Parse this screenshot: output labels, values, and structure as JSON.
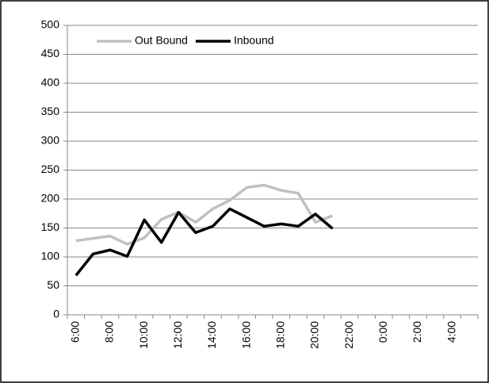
{
  "chart_data": {
    "type": "line",
    "categories": [
      "6:00",
      null,
      "8:00",
      null,
      "10:00",
      null,
      "12:00",
      null,
      "14:00",
      null,
      "16:00",
      null,
      "18:00",
      null,
      "20:00",
      null,
      "22:00",
      null,
      "0:00",
      null,
      "2:00",
      null,
      "4:00",
      null
    ],
    "series": [
      {
        "name": "Out Bound",
        "color": "#c0c0c0",
        "values": [
          128,
          132,
          136,
          122,
          133,
          165,
          177,
          160,
          183,
          198,
          220,
          224,
          215,
          210,
          160,
          171,
          null,
          null,
          null,
          null,
          null,
          null,
          null,
          null
        ]
      },
      {
        "name": "Inbound",
        "color": "#000000",
        "values": [
          68,
          105,
          112,
          101,
          164,
          125,
          177,
          142,
          153,
          183,
          168,
          153,
          157,
          153,
          174,
          149,
          null,
          null,
          null,
          null,
          null,
          null,
          null,
          null
        ]
      }
    ],
    "ylim": [
      0,
      500
    ],
    "yticks": [
      0,
      50,
      100,
      150,
      200,
      250,
      300,
      350,
      400,
      450,
      500
    ],
    "grid": true,
    "legend": "top-left"
  }
}
